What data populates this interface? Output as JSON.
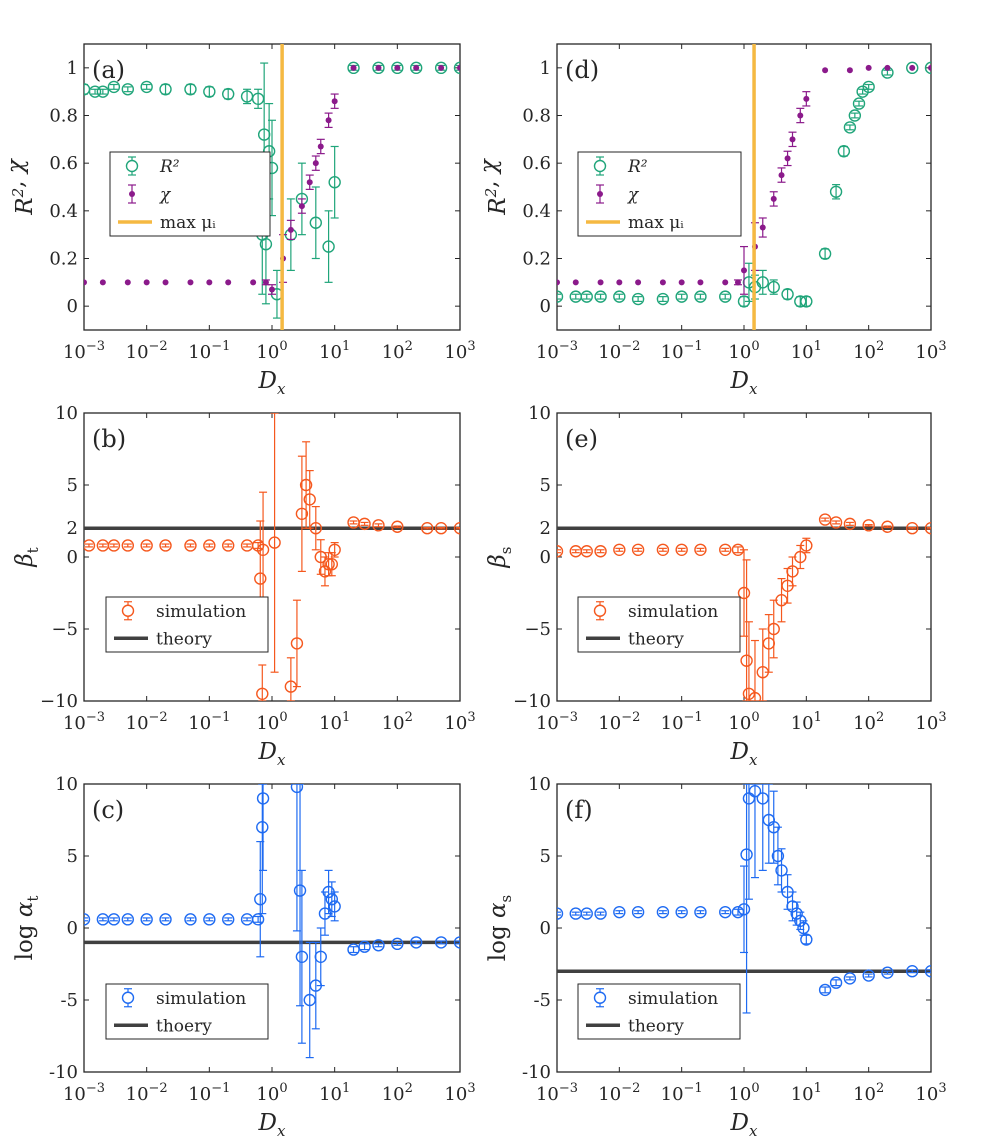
{
  "figure": {
    "title": ""
  },
  "chart_data": [
    {
      "id": "a",
      "type": "scatter",
      "panel_label": "(a)",
      "xlabel": "D_x",
      "ylabel": "R^2, χ",
      "xscale": "log",
      "xlim": [
        0.001,
        1000
      ],
      "ylim": [
        -0.1,
        1.1
      ],
      "yticks": [
        0,
        0.2,
        0.4,
        0.6,
        0.8,
        1
      ],
      "ytick_labels": [
        "0",
        "0.2",
        "0.4",
        "0.6",
        "0.8",
        "1"
      ],
      "legend": {
        "placement": "left-middle",
        "entries": [
          "R²",
          "χ",
          "max μᵢ"
        ]
      },
      "vline": {
        "name": "max μᵢ",
        "x": 1.45,
        "color": "#f5b942"
      },
      "series": [
        {
          "name": "R²",
          "marker": "circle",
          "color": "#20a57a",
          "x": [
            0.001,
            0.0015,
            0.002,
            0.003,
            0.005,
            0.01,
            0.02,
            0.05,
            0.1,
            0.2,
            0.4,
            0.6,
            0.7,
            0.75,
            0.8,
            0.9,
            1.0,
            1.2,
            2,
            3,
            5,
            8,
            10,
            20,
            50,
            100,
            200,
            500,
            1000
          ],
          "y": [
            0.91,
            0.9,
            0.9,
            0.92,
            0.91,
            0.92,
            0.91,
            0.91,
            0.9,
            0.89,
            0.88,
            0.87,
            0.3,
            0.72,
            0.26,
            0.65,
            0.58,
            0.05,
            0.3,
            0.45,
            0.35,
            0.25,
            0.52,
            1,
            1,
            1,
            1,
            1,
            1
          ],
          "err": [
            0.02,
            0.01,
            0.01,
            0.01,
            0.01,
            0.01,
            0.02,
            0.02,
            0.02,
            0.02,
            0.03,
            0.04,
            0.25,
            0.3,
            0.25,
            0.2,
            0.2,
            0.1,
            0.15,
            0.15,
            0.15,
            0.15,
            0.15,
            0.01,
            0.01,
            0.01,
            0.01,
            0.01,
            0.01
          ]
        },
        {
          "name": "χ",
          "marker": "dot",
          "color": "#8b1a8b",
          "x": [
            0.001,
            0.002,
            0.005,
            0.01,
            0.02,
            0.05,
            0.1,
            0.2,
            0.5,
            0.8,
            1.0,
            1.5,
            2,
            3,
            4,
            5,
            6,
            8,
            10,
            20,
            50,
            100,
            200,
            500,
            1000
          ],
          "y": [
            0.1,
            0.1,
            0.1,
            0.1,
            0.1,
            0.1,
            0.1,
            0.1,
            0.1,
            0.1,
            0.07,
            0.2,
            0.32,
            0.42,
            0.52,
            0.6,
            0.67,
            0.78,
            0.86,
            1,
            1,
            1,
            1,
            1,
            1
          ],
          "err": [
            0,
            0,
            0,
            0,
            0,
            0,
            0,
            0,
            0,
            0.01,
            0.02,
            0.1,
            0.04,
            0.03,
            0.03,
            0.03,
            0.03,
            0.03,
            0.03,
            0,
            0,
            0,
            0,
            0,
            0
          ]
        }
      ]
    },
    {
      "id": "d",
      "type": "scatter",
      "panel_label": "(d)",
      "xlabel": "D_x",
      "ylabel": "R^2, χ",
      "xscale": "log",
      "xlim": [
        0.001,
        1000
      ],
      "ylim": [
        -0.1,
        1.1
      ],
      "yticks": [
        0,
        0.2,
        0.4,
        0.6,
        0.8,
        1
      ],
      "ytick_labels": [
        "0",
        "0.2",
        "0.4",
        "0.6",
        "0.8",
        "1"
      ],
      "legend": {
        "placement": "left-middle",
        "entries": [
          "R²",
          "χ",
          "max μᵢ"
        ]
      },
      "vline": {
        "name": "max μᵢ",
        "x": 1.45,
        "color": "#f5b942"
      },
      "series": [
        {
          "name": "R²",
          "marker": "circle",
          "color": "#20a57a",
          "x": [
            0.001,
            0.002,
            0.003,
            0.005,
            0.01,
            0.02,
            0.05,
            0.1,
            0.2,
            0.5,
            1.0,
            1.2,
            1.5,
            2,
            3,
            5,
            8,
            10,
            20,
            30,
            40,
            50,
            60,
            70,
            80,
            100,
            200,
            500,
            1000
          ],
          "y": [
            0.04,
            0.04,
            0.04,
            0.04,
            0.04,
            0.03,
            0.03,
            0.04,
            0.04,
            0.04,
            0.02,
            0.1,
            0.08,
            0.1,
            0.08,
            0.05,
            0.02,
            0.02,
            0.22,
            0.48,
            0.65,
            0.75,
            0.8,
            0.85,
            0.9,
            0.92,
            0.98,
            1,
            1
          ],
          "err": [
            0.01,
            0.01,
            0.01,
            0.01,
            0.01,
            0.01,
            0.01,
            0.01,
            0.01,
            0.01,
            0.02,
            0.08,
            0.05,
            0.05,
            0.03,
            0.02,
            0.02,
            0.02,
            0.02,
            0.03,
            0.02,
            0.01,
            0.01,
            0.01,
            0.01,
            0.01,
            0.01,
            0,
            0
          ]
        },
        {
          "name": "χ",
          "marker": "dot",
          "color": "#8b1a8b",
          "x": [
            0.001,
            0.002,
            0.005,
            0.01,
            0.02,
            0.05,
            0.1,
            0.2,
            0.5,
            0.8,
            1.0,
            1.5,
            2,
            3,
            4,
            5,
            6,
            8,
            10,
            20,
            50,
            100,
            200,
            500,
            1000
          ],
          "y": [
            0.1,
            0.1,
            0.1,
            0.1,
            0.1,
            0.1,
            0.1,
            0.1,
            0.1,
            0.1,
            0.15,
            0.25,
            0.33,
            0.45,
            0.55,
            0.62,
            0.7,
            0.8,
            0.87,
            0.99,
            0.99,
            1,
            1,
            1,
            1
          ],
          "err": [
            0,
            0,
            0,
            0,
            0,
            0,
            0,
            0,
            0,
            0.01,
            0.1,
            0.1,
            0.04,
            0.03,
            0.03,
            0.03,
            0.03,
            0.03,
            0.03,
            0,
            0,
            0,
            0,
            0,
            0
          ]
        }
      ]
    },
    {
      "id": "b",
      "type": "scatter",
      "panel_label": "(b)",
      "xlabel": "D_x",
      "ylabel": "β_t",
      "xscale": "log",
      "xlim": [
        0.001,
        1000
      ],
      "ylim": [
        -10,
        10
      ],
      "yticks": [
        -10,
        -5,
        0,
        2,
        5,
        10
      ],
      "ytick_labels": [
        "−10",
        "−5",
        "0",
        "2",
        "5",
        "10"
      ],
      "legend": {
        "placement": "bottom-left",
        "entries": [
          "simulation",
          "theory"
        ]
      },
      "hline": {
        "name": "theory",
        "y": 2,
        "color": "#404040"
      },
      "series": [
        {
          "name": "simulation",
          "marker": "circle",
          "color": "#f5581e",
          "x": [
            0.0012,
            0.002,
            0.003,
            0.005,
            0.01,
            0.02,
            0.05,
            0.1,
            0.2,
            0.4,
            0.6,
            0.65,
            0.7,
            0.72,
            1.1,
            2,
            2.5,
            3,
            3.5,
            4,
            5,
            6,
            7,
            8,
            9,
            10,
            20,
            30,
            50,
            100,
            300,
            500,
            1000
          ],
          "y": [
            0.8,
            0.8,
            0.8,
            0.8,
            0.8,
            0.8,
            0.8,
            0.8,
            0.8,
            0.8,
            0.8,
            -1.5,
            -9.5,
            0.5,
            1,
            -9,
            -6,
            3,
            5,
            4,
            2,
            0,
            -1,
            -0.5,
            -0.5,
            0.5,
            2.4,
            2.3,
            2.2,
            2.1,
            2.0,
            2.0,
            2.0
          ],
          "err": [
            0.1,
            0.1,
            0.1,
            0.1,
            0.1,
            0.1,
            0.1,
            0.1,
            0.1,
            0.1,
            0.2,
            4,
            2,
            4,
            9,
            2,
            3,
            4,
            3,
            2,
            1.5,
            1.2,
            1,
            0.8,
            0.8,
            0.5,
            0.1,
            0.1,
            0.1,
            0.05,
            0.05,
            0.05,
            0.05
          ]
        }
      ]
    },
    {
      "id": "e",
      "type": "scatter",
      "panel_label": "(e)",
      "xlabel": "D_x",
      "ylabel": "β_s",
      "xscale": "log",
      "xlim": [
        0.001,
        1000
      ],
      "ylim": [
        -10,
        10
      ],
      "yticks": [
        -10,
        -5,
        0,
        2,
        5,
        10
      ],
      "ytick_labels": [
        "−10",
        "−5",
        "0",
        "2",
        "5",
        "10"
      ],
      "legend": {
        "placement": "bottom-left",
        "entries": [
          "simulation",
          "theory"
        ]
      },
      "hline": {
        "name": "theory",
        "y": 2,
        "color": "#404040"
      },
      "series": [
        {
          "name": "simulation",
          "marker": "circle",
          "color": "#f5581e",
          "x": [
            0.001,
            0.002,
            0.003,
            0.005,
            0.01,
            0.02,
            0.05,
            0.1,
            0.2,
            0.5,
            0.8,
            1.0,
            1.1,
            1.2,
            1.5,
            2,
            2.5,
            3,
            4,
            5,
            6,
            8,
            10,
            20,
            30,
            50,
            100,
            200,
            500,
            1000
          ],
          "y": [
            0.4,
            0.4,
            0.4,
            0.4,
            0.5,
            0.5,
            0.5,
            0.5,
            0.5,
            0.5,
            0.5,
            -2.5,
            -7.2,
            -9.5,
            -9.8,
            -8,
            -6,
            -5,
            -3,
            -2,
            -1,
            0,
            0.8,
            2.6,
            2.4,
            2.3,
            2.2,
            2.1,
            2.0,
            2.0
          ],
          "err": [
            0.1,
            0.1,
            0.1,
            0.1,
            0.1,
            0.1,
            0.1,
            0.1,
            0.1,
            0.1,
            0.2,
            3,
            7,
            5,
            4,
            3,
            2,
            2,
            1.5,
            1.2,
            1,
            0.8,
            0.5,
            0.1,
            0.1,
            0.1,
            0.05,
            0.05,
            0.05,
            0.05
          ]
        }
      ]
    },
    {
      "id": "c",
      "type": "scatter",
      "panel_label": "(c)",
      "xlabel": "D_x",
      "ylabel": "log α_t",
      "xscale": "log",
      "xlim": [
        0.001,
        1000
      ],
      "ylim": [
        -10,
        10
      ],
      "yticks": [
        -10,
        -5,
        0,
        5,
        10
      ],
      "ytick_labels": [
        "-10",
        "-5",
        "0",
        "5",
        "10"
      ],
      "legend": {
        "placement": "bottom-left",
        "entries": [
          "simulation",
          "thoery"
        ]
      },
      "hline": {
        "name": "thoery",
        "y": -1,
        "color": "#404040"
      },
      "series": [
        {
          "name": "simulation",
          "marker": "circle",
          "color": "#1f6bf2",
          "x": [
            0.001,
            0.002,
            0.003,
            0.005,
            0.01,
            0.02,
            0.05,
            0.1,
            0.2,
            0.4,
            0.6,
            0.65,
            0.7,
            0.72,
            2.5,
            2.8,
            3,
            4,
            5,
            6,
            7,
            8,
            9,
            10,
            20,
            30,
            50,
            100,
            200,
            500,
            1000
          ],
          "y": [
            0.6,
            0.6,
            0.6,
            0.6,
            0.6,
            0.6,
            0.6,
            0.6,
            0.6,
            0.6,
            0.6,
            2,
            7,
            9,
            9.8,
            2.6,
            -2,
            -5,
            -4,
            -2,
            1,
            2.5,
            2,
            1.5,
            -1.5,
            -1.3,
            -1.2,
            -1.1,
            -1.0,
            -1.0,
            -1.0
          ],
          "err": [
            0.1,
            0.1,
            0.1,
            0.1,
            0.1,
            0.1,
            0.1,
            0.1,
            0.1,
            0.1,
            0.2,
            4,
            6,
            5,
            10,
            8,
            6,
            4,
            3,
            2,
            1.5,
            1.5,
            1.2,
            1,
            0.2,
            0.2,
            0.1,
            0.1,
            0.1,
            0.1,
            0.1
          ]
        }
      ]
    },
    {
      "id": "f",
      "type": "scatter",
      "panel_label": "(f)",
      "xlabel": "D_x",
      "ylabel": "log α_s",
      "xscale": "log",
      "xlim": [
        0.001,
        1000
      ],
      "ylim": [
        -10,
        10
      ],
      "yticks": [
        -10,
        -5,
        0,
        5,
        10
      ],
      "ytick_labels": [
        "-10",
        "-5",
        "0",
        "5",
        "10"
      ],
      "legend": {
        "placement": "bottom-left",
        "entries": [
          "simulation",
          "theory"
        ]
      },
      "hline": {
        "name": "theory",
        "y": -3,
        "color": "#404040"
      },
      "series": [
        {
          "name": "simulation",
          "marker": "circle",
          "color": "#1f6bf2",
          "x": [
            0.001,
            0.002,
            0.003,
            0.005,
            0.01,
            0.02,
            0.05,
            0.1,
            0.2,
            0.5,
            0.8,
            1.0,
            1.1,
            1.2,
            1.5,
            2,
            2.5,
            3,
            3.5,
            4,
            5,
            6,
            7,
            8,
            9,
            10,
            20,
            30,
            50,
            100,
            200,
            500,
            1000
          ],
          "y": [
            1.0,
            1.0,
            1.0,
            1.0,
            1.1,
            1.1,
            1.1,
            1.1,
            1.1,
            1.1,
            1.1,
            1.3,
            5.1,
            9,
            9.5,
            9,
            7.5,
            7,
            5,
            4,
            2.5,
            1.5,
            1,
            0.5,
            0,
            -0.8,
            -4.3,
            -3.8,
            -3.5,
            -3.3,
            -3.1,
            -3.0,
            -3.0
          ],
          "err": [
            0.1,
            0.1,
            0.1,
            0.1,
            0.1,
            0.1,
            0.1,
            0.1,
            0.1,
            0.1,
            0.2,
            3,
            11,
            7,
            6,
            5,
            3,
            2.5,
            2,
            1.5,
            1.2,
            1,
            0.8,
            0.6,
            0.5,
            0.3,
            0.2,
            0.2,
            0.1,
            0.1,
            0.1,
            0.1,
            0.1
          ]
        }
      ]
    }
  ]
}
